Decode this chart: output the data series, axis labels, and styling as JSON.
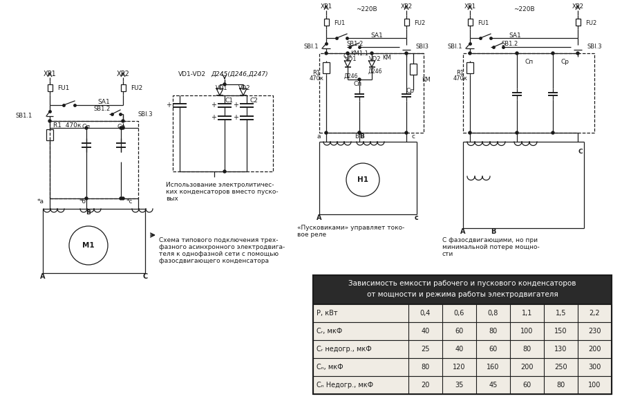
{
  "bg_color": "#ffffff",
  "line_color": "#1a1a1a",
  "table_header_bg": "#2a2a2a",
  "table_header_fg": "#ffffff",
  "table_row_bg": "#f0ece4",
  "table_border": "#1a1a1a",
  "title_line1": "Схема типового подключения трех-",
  "title_line2": "фазного асинхронного электродвига-",
  "title_line3": "теля к однофазной сети с помощью",
  "title_line4": "фазосдвигающего конденсатора",
  "cap2_l1": "Использование электролитичес-",
  "cap2_l2": "ких конденсаторов вместо пуско-",
  "cap2_l3": "вых",
  "cap3_l1": "«Пусковиками» управляет токо-",
  "cap3_l2": "вое реле",
  "cap4_l1": "С фазосдвигающими, но при",
  "cap4_l2": "минимальной потере мощно-",
  "cap4_l3": "сти",
  "table_title_l1": "Зависимость емкости рабочего и пускового конденсаторов",
  "table_title_l2": "от мощности и режима работы электродвигателя",
  "row0": [
    "Р, кВт",
    "0,4",
    "0,6",
    "0,8",
    "1,1",
    "1,5",
    "2,2"
  ],
  "row1": [
    "Cᵣ, мкФ",
    "40",
    "60",
    "80",
    "100",
    "150",
    "230"
  ],
  "row2": [
    "Cᵣ недогр., мкФ",
    "25",
    "40",
    "60",
    "80",
    "130",
    "200"
  ],
  "row3": [
    "Cₙ, мкФ",
    "80",
    "120",
    "160",
    "200",
    "250",
    "300"
  ],
  "row4": [
    "Cₙ Недогр., мкФ",
    "20",
    "35",
    "45",
    "60",
    "80",
    "100"
  ]
}
